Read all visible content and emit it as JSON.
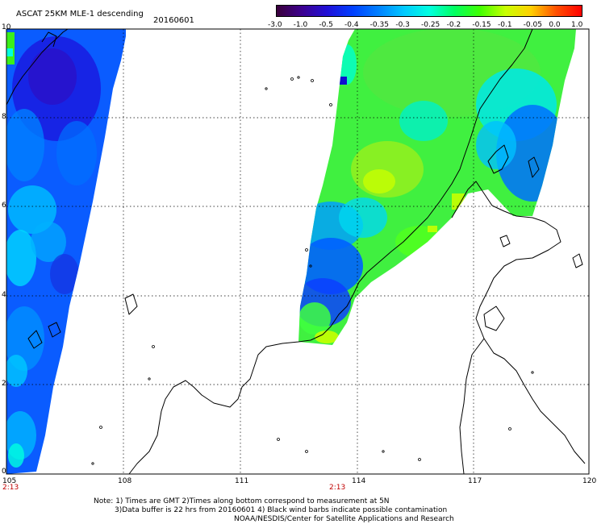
{
  "header": {
    "title": "ASCAT 25KM MLE-1 descending",
    "date": "20160601"
  },
  "colorbar": {
    "ticks": [
      "-3.0",
      "-1.0",
      "-0.5",
      "-0.4",
      "-0.35",
      "-0.3",
      "-0.25",
      "-0.2",
      "-0.15",
      "-0.1",
      "-0.05",
      "0.0",
      "1.0"
    ],
    "colors": [
      "#3a003a",
      "#3c0090",
      "#2010d8",
      "#0040ff",
      "#0080ff",
      "#00c8ff",
      "#00ffe0",
      "#00ff60",
      "#40ff00",
      "#c8ff00",
      "#ffd000",
      "#ff5000",
      "#ff0000"
    ]
  },
  "axes": {
    "lat_labels": [
      "10",
      "8",
      "6",
      "4",
      "2",
      "0"
    ],
    "lon_labels": [
      "105",
      "108",
      "111",
      "114",
      "117",
      "120"
    ],
    "time_labels": [
      "2:13",
      "2:13"
    ]
  },
  "notes": {
    "line1": "Note: 1) Times are GMT 2)Times along bottom correspond to measurement at 5N",
    "line2": "3)Data buffer is 22 hrs from 20160601 4) Black wind barbs indicate possible contamination",
    "line3": "NOAA/NESDIS/Center for Satellite Applications and Research"
  }
}
